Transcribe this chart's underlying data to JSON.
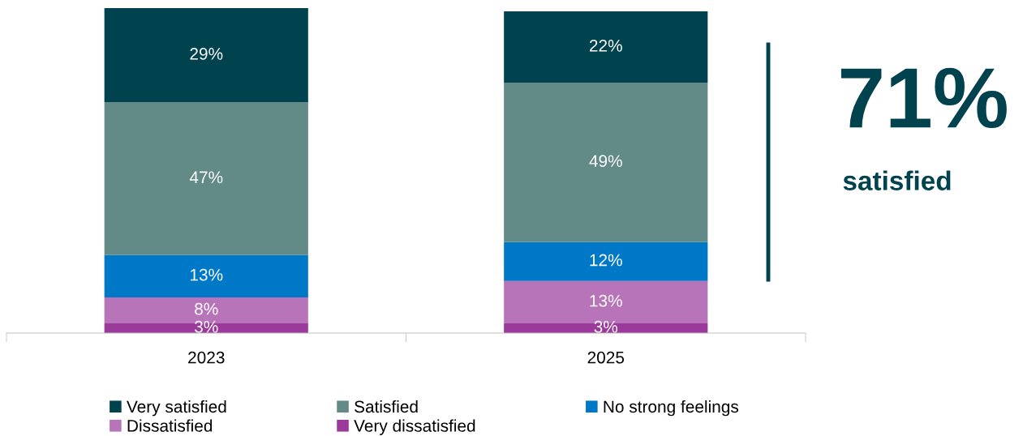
{
  "chart_data": {
    "type": "bar",
    "stacked": true,
    "legend": "bottom",
    "grid": false,
    "categories": [
      "2023",
      "2025"
    ],
    "series": [
      {
        "name": "Very dissatisfied",
        "color": "#9c3a9c",
        "values": [
          3,
          3
        ],
        "value_labels": [
          "3%",
          "3%"
        ]
      },
      {
        "name": "Dissatisfied",
        "color": "#b874b8",
        "values": [
          8,
          13
        ],
        "value_labels": [
          "8%",
          "13%"
        ]
      },
      {
        "name": "No strong feelings",
        "color": "#0078c8",
        "values": [
          13,
          12
        ],
        "value_labels": [
          "13%",
          "12%"
        ]
      },
      {
        "name": "Satisfied",
        "color": "#628a87",
        "values": [
          47,
          49
        ],
        "value_labels": [
          "47%",
          "49%"
        ]
      },
      {
        "name": "Very satisfied",
        "color": "#01424f",
        "values": [
          29,
          22
        ],
        "value_labels": [
          "29%",
          "22%"
        ]
      }
    ],
    "annotations": [
      "71%",
      "satisfied"
    ]
  }
}
